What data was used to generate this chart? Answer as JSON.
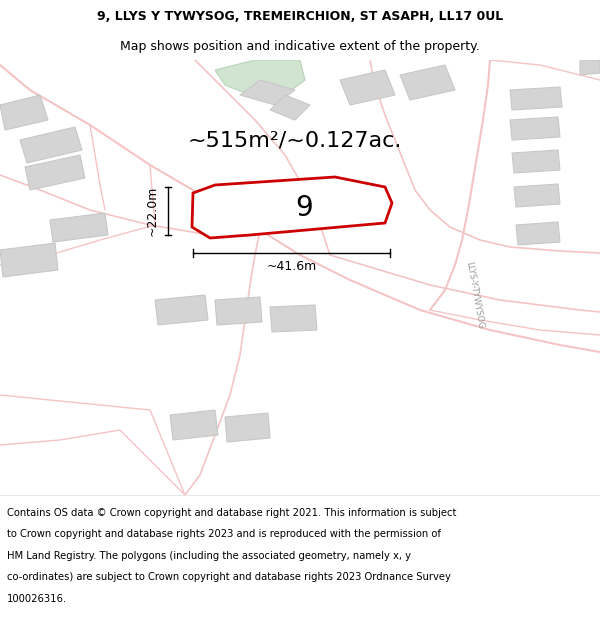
{
  "title_line1": "9, LLYS Y TYWYSOG, TREMEIRCHION, ST ASAPH, LL17 0UL",
  "title_line2": "Map shows position and indicative extent of the property.",
  "area_text": "~515m²/~0.127ac.",
  "property_number": "9",
  "dim_width": "~41.6m",
  "dim_height": "~22.0m",
  "footer_lines": [
    "Contains OS data © Crown copyright and database right 2021. This information is subject",
    "to Crown copyright and database rights 2023 and is reproduced with the permission of",
    "HM Land Registry. The polygons (including the associated geometry, namely x, y",
    "co-ordinates) are subject to Crown copyright and database rights 2023 Ordnance Survey",
    "100026316."
  ],
  "bg_color": "#ffffff",
  "map_bg": "#ffffff",
  "road_color": "#f4c4c4",
  "building_fill": "#d4d4d4",
  "building_edge": "#c8c8c8",
  "highlight_fill": "#ffffff",
  "highlight_edge": "#cc0000",
  "green_fill": "#d0e4d0",
  "green_edge": "#b8d4b8",
  "street_label": "LLYS-Y-TYWYSOG",
  "title_fontsize": 9,
  "subtitle_fontsize": 9,
  "footer_fontsize": 7.2,
  "area_fontsize": 16,
  "number_fontsize": 20,
  "dim_fontsize": 9
}
